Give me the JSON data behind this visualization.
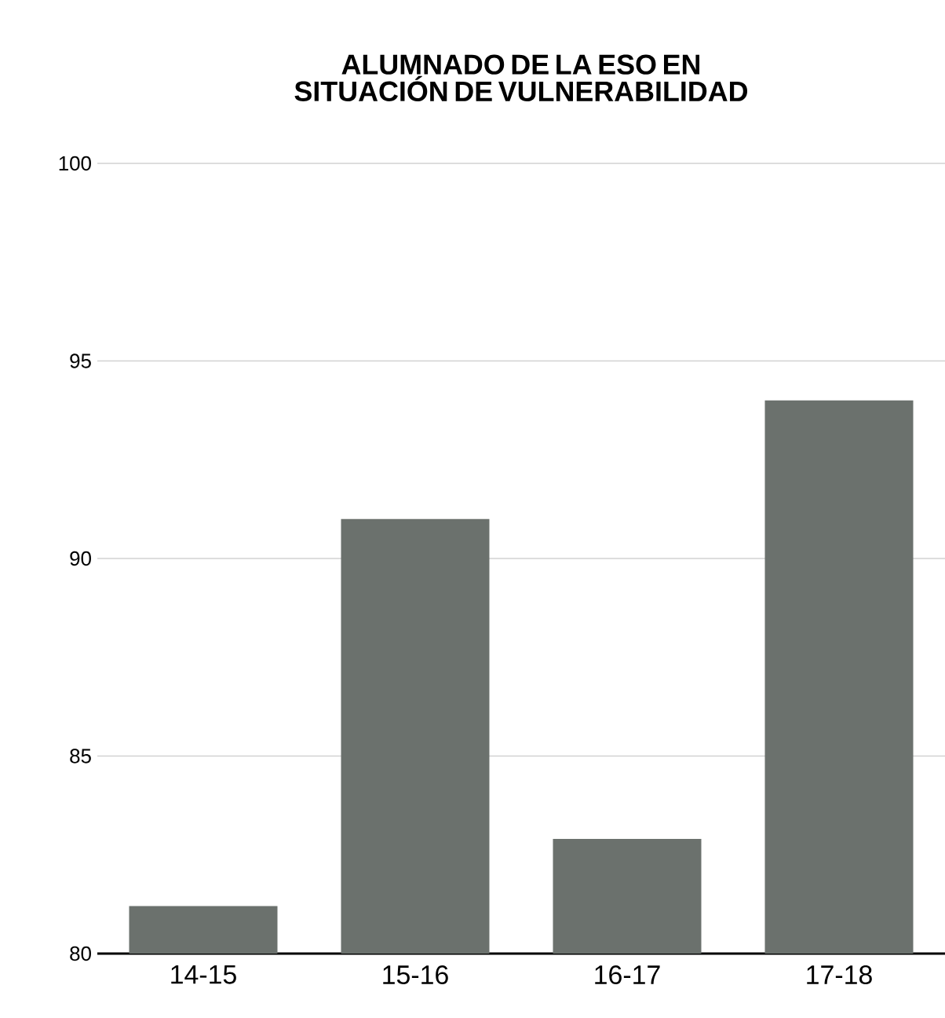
{
  "chart_data": {
    "type": "bar",
    "title": "ALUMNADO DE LA ESO EN SITUACIÓN DE VULNERABILIDAD",
    "categories": [
      "14-15",
      "15-16",
      "16-17",
      "17-18"
    ],
    "values": [
      81.2,
      91,
      82.9,
      94
    ],
    "color": "#6b716d",
    "ylim": [
      80,
      100
    ],
    "yticks": [
      80,
      85,
      90,
      95,
      100
    ],
    "grid": "y"
  }
}
